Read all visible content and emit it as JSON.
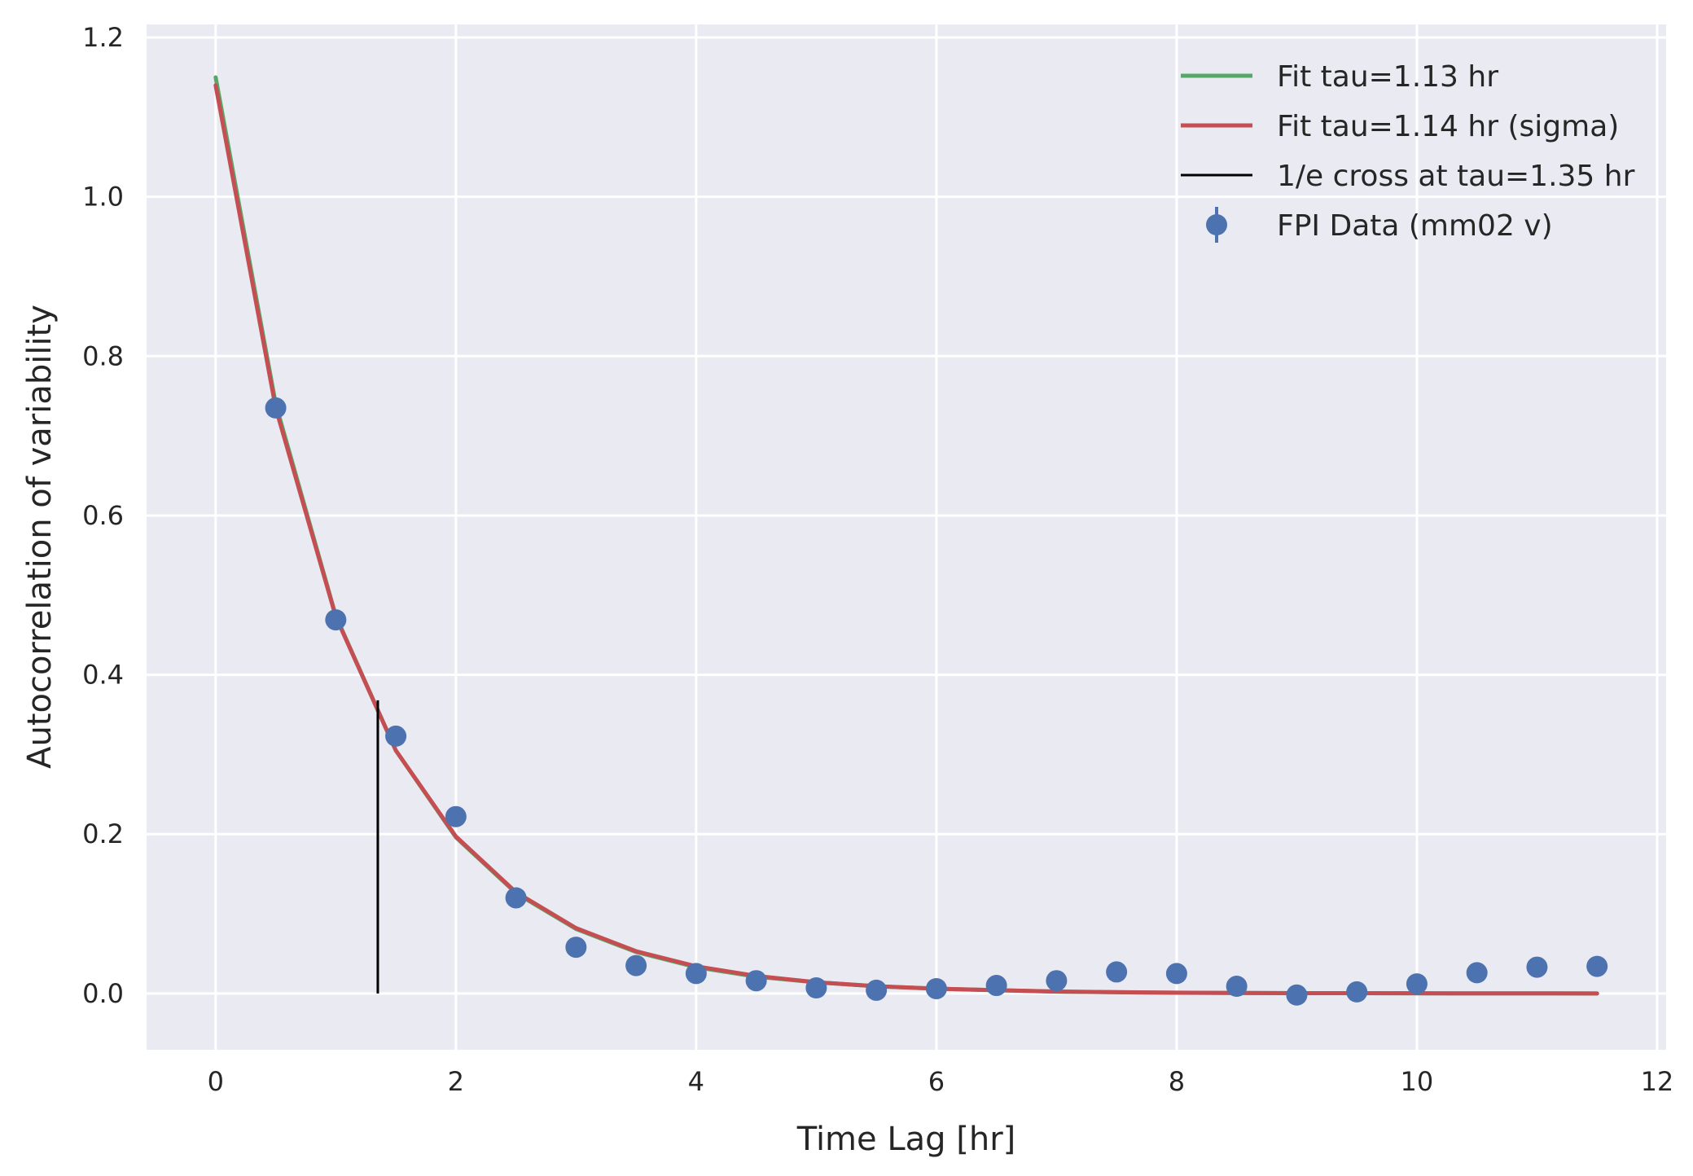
{
  "chart_data": {
    "type": "line",
    "title": "",
    "xlabel": "Time Lag [hr]",
    "ylabel": "Autocorrelation of variability",
    "xlim": [
      -0.575,
      12.075
    ],
    "ylim": [
      -0.0707,
      1.2164
    ],
    "xticks": [
      0,
      2,
      4,
      6,
      8,
      10,
      12
    ],
    "yticks": [
      0.0,
      0.2,
      0.4,
      0.6,
      0.8,
      1.0,
      1.2
    ],
    "xtick_labels": [
      "0",
      "2",
      "4",
      "6",
      "8",
      "10",
      "12"
    ],
    "ytick_labels": [
      "0.0",
      "0.2",
      "0.4",
      "0.6",
      "0.8",
      "1.0",
      "1.2"
    ],
    "grid": true,
    "legend_position": "top-right",
    "colors": {
      "background": "#eaeaf2",
      "grid": "#ffffff",
      "fit_green": "#55a868",
      "fit_red": "#c44e52",
      "cross_line": "#000000",
      "data_points": "#4c72b0"
    },
    "series": [
      {
        "name": "Fit tau=1.13 hr",
        "kind": "line",
        "color": "#55a868",
        "x": [
          0,
          0.5,
          1,
          1.5,
          2,
          2.5,
          3,
          3.5,
          4,
          4.5,
          5,
          5.5,
          6,
          6.5,
          7,
          7.5,
          8,
          8.5,
          9,
          9.5,
          10,
          10.5,
          11,
          11.5
        ],
        "y": [
          1.15,
          0.74,
          0.474,
          0.305,
          0.196,
          0.126,
          0.081,
          0.052,
          0.033,
          0.021,
          0.014,
          0.009,
          0.006,
          0.004,
          0.0023,
          0.0015,
          0.0009,
          0.0006,
          0.0004,
          0.0003,
          0.0002,
          0.0001,
          0.0001,
          0.0
        ]
      },
      {
        "name": "Fit tau=1.14 hr (sigma)",
        "kind": "line",
        "color": "#c44e52",
        "x": [
          0,
          0.5,
          1,
          1.5,
          2,
          2.5,
          3,
          3.5,
          4,
          4.5,
          5,
          5.5,
          6,
          6.5,
          7,
          7.5,
          8,
          8.5,
          9,
          9.5,
          10,
          10.5,
          11,
          11.5
        ],
        "y": [
          1.14,
          0.735,
          0.473,
          0.305,
          0.197,
          0.127,
          0.082,
          0.053,
          0.034,
          0.022,
          0.014,
          0.009,
          0.006,
          0.004,
          0.0024,
          0.0016,
          0.001,
          0.0006,
          0.0004,
          0.0003,
          0.0002,
          0.0001,
          0.0001,
          0.0
        ]
      },
      {
        "name": "1/e cross at tau=1.35 hr",
        "kind": "vline",
        "color": "#000000",
        "x": [
          1.35,
          1.35
        ],
        "y": [
          0.0,
          0.368
        ]
      },
      {
        "name": "FPI Data (mm02 v)",
        "kind": "errorbar",
        "color": "#4c72b0",
        "x": [
          0.5,
          1,
          1.5,
          2,
          2.5,
          3,
          3.5,
          4,
          4.5,
          5,
          5.5,
          6,
          6.5,
          7,
          7.5,
          8,
          8.5,
          9,
          9.5,
          10,
          10.5,
          11,
          11.5
        ],
        "y": [
          0.735,
          0.469,
          0.323,
          0.222,
          0.12,
          0.058,
          0.035,
          0.025,
          0.016,
          0.007,
          0.004,
          0.006,
          0.01,
          0.016,
          0.027,
          0.025,
          0.009,
          -0.002,
          0.002,
          0.012,
          0.026,
          0.033,
          0.034
        ]
      }
    ]
  }
}
